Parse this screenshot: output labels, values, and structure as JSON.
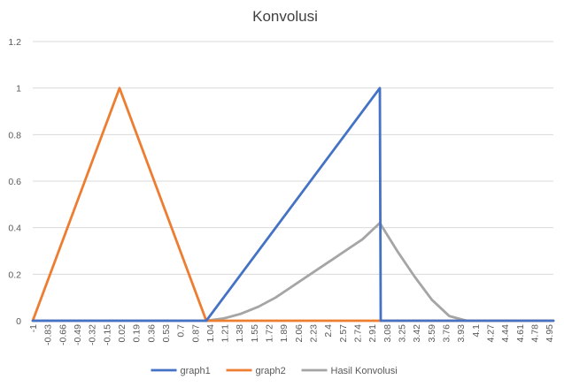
{
  "chart_data": {
    "type": "line",
    "title": "Konvolusi",
    "xlabel": "",
    "ylabel": "",
    "ylim": [
      0,
      1.2
    ],
    "yticks": [
      "0",
      "0.2",
      "0.4",
      "0.6",
      "0.8",
      "1",
      "1.2"
    ],
    "xlim": [
      -1,
      5
    ],
    "xticks": [
      "-1",
      "-0.83",
      "-0.66",
      "-0.49",
      "-0.32",
      "-0.15",
      "0.02",
      "0.19",
      "0.36",
      "0.53",
      "0.7",
      "0.87",
      "1.04",
      "1.21",
      "1.38",
      "1.55",
      "1.72",
      "1.89",
      "2.06",
      "2.23",
      "2.4",
      "2.57",
      "2.74",
      "2.91",
      "3.08",
      "3.25",
      "3.42",
      "3.59",
      "3.76",
      "3.93",
      "4.1",
      "4.27",
      "4.44",
      "4.61",
      "4.78",
      "4.95"
    ],
    "grid": true,
    "legend": "bottom",
    "series": [
      {
        "name": "graph1",
        "color": "#4472C4",
        "points": [
          [
            -1,
            0
          ],
          [
            1.0,
            0
          ],
          [
            3.0,
            1
          ],
          [
            3.01,
            0
          ],
          [
            5,
            0
          ]
        ]
      },
      {
        "name": "graph2",
        "color": "#ED7D31",
        "points": [
          [
            -1,
            0
          ],
          [
            0,
            1
          ],
          [
            1.0,
            0
          ],
          [
            5,
            0
          ]
        ]
      },
      {
        "name": "Hasil Konvolusi",
        "color": "#A5A5A5",
        "points": [
          [
            -1,
            0
          ],
          [
            1.0,
            0
          ],
          [
            1.2,
            0.01
          ],
          [
            1.4,
            0.03
          ],
          [
            1.6,
            0.06
          ],
          [
            1.8,
            0.1
          ],
          [
            2.0,
            0.15
          ],
          [
            2.2,
            0.2
          ],
          [
            2.4,
            0.25
          ],
          [
            2.6,
            0.3
          ],
          [
            2.8,
            0.35
          ],
          [
            3.0,
            0.42
          ],
          [
            3.2,
            0.3
          ],
          [
            3.4,
            0.19
          ],
          [
            3.6,
            0.09
          ],
          [
            3.8,
            0.02
          ],
          [
            4.0,
            0
          ],
          [
            5,
            0
          ]
        ]
      }
    ]
  }
}
